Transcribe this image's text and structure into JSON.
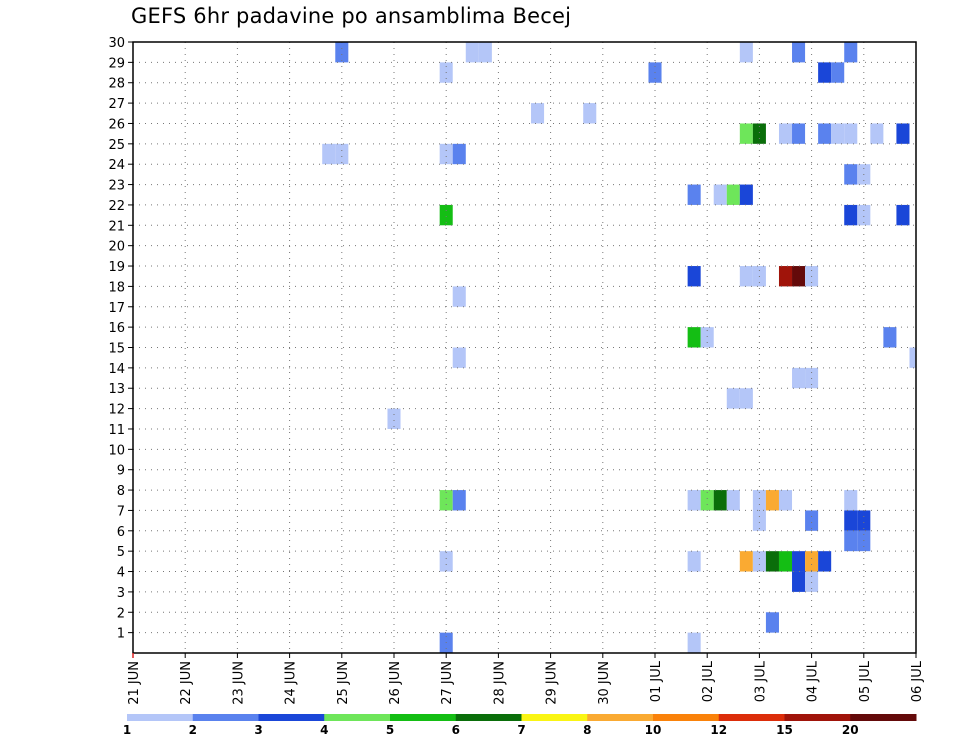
{
  "chart_data": {
    "type": "heatmap",
    "title": "GEFS 6hr padavine po ansamblima Becej",
    "xlabel": "",
    "ylabel": "",
    "x_start": "21 JUN",
    "x_ticks": [
      "21 JUN",
      "22 JUN",
      "23 JUN",
      "24 JUN",
      "25 JUN",
      "26 JUN",
      "27 JUN",
      "28 JUN",
      "29 JUN",
      "30 JUN",
      "01 JUL",
      "02 JUL",
      "03 JUL",
      "04 JUL",
      "05 JUL",
      "06 JUL"
    ],
    "y_ticks": [
      1,
      2,
      3,
      4,
      5,
      6,
      7,
      8,
      9,
      10,
      11,
      12,
      13,
      14,
      15,
      16,
      17,
      18,
      19,
      20,
      21,
      22,
      23,
      24,
      25,
      26,
      27,
      28,
      29,
      30
    ],
    "xlim": [
      0,
      15
    ],
    "ylim": [
      0,
      30
    ],
    "grid": true,
    "legend": {
      "placement": "bottom",
      "labels": [
        "1",
        "2",
        "3",
        "4",
        "5",
        "6",
        "7",
        "8",
        "10",
        "12",
        "15",
        "20"
      ],
      "colors": [
        "#b4c6f8",
        "#5a82ee",
        "#1a46d8",
        "#6ee65a",
        "#14be14",
        "#0a6e0a",
        "#faf514",
        "#faaa32",
        "#fa820a",
        "#dc2d0a",
        "#a0140a",
        "#640a0a"
      ]
    },
    "cell_width": 0.25,
    "cell_height": 1,
    "cells": [
      {
        "x": 4.0,
        "y": 29.5,
        "v": 2
      },
      {
        "x": 6.75,
        "y": 29.5,
        "v": 1
      },
      {
        "x": 11.75,
        "y": 29.5,
        "v": 1
      },
      {
        "x": 12.75,
        "y": 29.5,
        "v": 2
      },
      {
        "x": 13.75,
        "y": 29.5,
        "v": 2
      },
      {
        "x": 6.5,
        "y": 29.5,
        "v": 1
      },
      {
        "x": 6.0,
        "y": 28.5,
        "v": 1
      },
      {
        "x": 10.0,
        "y": 28.5,
        "v": 2
      },
      {
        "x": 13.25,
        "y": 28.5,
        "v": 3
      },
      {
        "x": 13.5,
        "y": 28.5,
        "v": 2
      },
      {
        "x": 7.75,
        "y": 26.5,
        "v": 1
      },
      {
        "x": 8.75,
        "y": 26.5,
        "v": 1
      },
      {
        "x": 11.75,
        "y": 25.5,
        "v": 4
      },
      {
        "x": 12.0,
        "y": 25.5,
        "v": 6
      },
      {
        "x": 12.5,
        "y": 25.5,
        "v": 1
      },
      {
        "x": 12.75,
        "y": 25.5,
        "v": 2
      },
      {
        "x": 13.25,
        "y": 25.5,
        "v": 2
      },
      {
        "x": 13.5,
        "y": 25.5,
        "v": 1
      },
      {
        "x": 13.75,
        "y": 25.5,
        "v": 1
      },
      {
        "x": 14.25,
        "y": 25.5,
        "v": 1
      },
      {
        "x": 14.75,
        "y": 25.5,
        "v": 3
      },
      {
        "x": 3.75,
        "y": 24.5,
        "v": 1
      },
      {
        "x": 4.0,
        "y": 24.5,
        "v": 1
      },
      {
        "x": 6.0,
        "y": 24.5,
        "v": 1
      },
      {
        "x": 6.25,
        "y": 24.5,
        "v": 2
      },
      {
        "x": 13.75,
        "y": 23.5,
        "v": 2
      },
      {
        "x": 14.0,
        "y": 23.5,
        "v": 1
      },
      {
        "x": 10.75,
        "y": 22.5,
        "v": 2
      },
      {
        "x": 11.25,
        "y": 22.5,
        "v": 1
      },
      {
        "x": 11.5,
        "y": 22.5,
        "v": 4
      },
      {
        "x": 11.75,
        "y": 22.5,
        "v": 3
      },
      {
        "x": 6.0,
        "y": 21.5,
        "v": 5
      },
      {
        "x": 13.75,
        "y": 21.5,
        "v": 3
      },
      {
        "x": 14.0,
        "y": 21.5,
        "v": 1
      },
      {
        "x": 14.75,
        "y": 21.5,
        "v": 3
      },
      {
        "x": 10.75,
        "y": 18.5,
        "v": 3
      },
      {
        "x": 11.75,
        "y": 18.5,
        "v": 1
      },
      {
        "x": 12.0,
        "y": 18.5,
        "v": 1
      },
      {
        "x": 12.5,
        "y": 18.5,
        "v": 15
      },
      {
        "x": 12.75,
        "y": 18.5,
        "v": 20
      },
      {
        "x": 13.0,
        "y": 18.5,
        "v": 1
      },
      {
        "x": 6.25,
        "y": 17.5,
        "v": 1
      },
      {
        "x": 10.75,
        "y": 15.5,
        "v": 5
      },
      {
        "x": 11.0,
        "y": 15.5,
        "v": 1
      },
      {
        "x": 14.5,
        "y": 15.5,
        "v": 2
      },
      {
        "x": 6.25,
        "y": 14.5,
        "v": 1
      },
      {
        "x": 15.0,
        "y": 14.5,
        "v": 1
      },
      {
        "x": 12.75,
        "y": 13.5,
        "v": 1
      },
      {
        "x": 13.0,
        "y": 13.5,
        "v": 1
      },
      {
        "x": 11.5,
        "y": 12.5,
        "v": 1
      },
      {
        "x": 11.75,
        "y": 12.5,
        "v": 1
      },
      {
        "x": 5.0,
        "y": 11.5,
        "v": 1
      },
      {
        "x": 6.0,
        "y": 7.5,
        "v": 4
      },
      {
        "x": 6.25,
        "y": 7.5,
        "v": 2
      },
      {
        "x": 10.75,
        "y": 7.5,
        "v": 1
      },
      {
        "x": 11.0,
        "y": 7.5,
        "v": 4
      },
      {
        "x": 11.25,
        "y": 7.5,
        "v": 6
      },
      {
        "x": 11.5,
        "y": 7.5,
        "v": 1
      },
      {
        "x": 12.0,
        "y": 7.5,
        "v": 1
      },
      {
        "x": 12.25,
        "y": 7.5,
        "v": 8
      },
      {
        "x": 12.5,
        "y": 7.5,
        "v": 1
      },
      {
        "x": 13.75,
        "y": 7.5,
        "v": 1
      },
      {
        "x": 12.0,
        "y": 6.5,
        "v": 1
      },
      {
        "x": 13.0,
        "y": 6.5,
        "v": 2
      },
      {
        "x": 13.75,
        "y": 6.5,
        "v": 3
      },
      {
        "x": 14.0,
        "y": 6.5,
        "v": 3
      },
      {
        "x": 13.75,
        "y": 5.5,
        "v": 2
      },
      {
        "x": 14.0,
        "y": 5.5,
        "v": 2
      },
      {
        "x": 6.0,
        "y": 4.5,
        "v": 1
      },
      {
        "x": 10.75,
        "y": 4.5,
        "v": 1
      },
      {
        "x": 11.75,
        "y": 4.5,
        "v": 8
      },
      {
        "x": 12.0,
        "y": 4.5,
        "v": 1
      },
      {
        "x": 12.25,
        "y": 4.5,
        "v": 6
      },
      {
        "x": 12.5,
        "y": 4.5,
        "v": 5
      },
      {
        "x": 12.75,
        "y": 4.5,
        "v": 3
      },
      {
        "x": 13.0,
        "y": 4.5,
        "v": 8
      },
      {
        "x": 13.25,
        "y": 4.5,
        "v": 3
      },
      {
        "x": 12.75,
        "y": 3.5,
        "v": 3
      },
      {
        "x": 13.0,
        "y": 3.5,
        "v": 1
      },
      {
        "x": 12.25,
        "y": 1.5,
        "v": 2
      },
      {
        "x": 6.0,
        "y": 0.5,
        "v": 2
      },
      {
        "x": 10.75,
        "y": 0.5,
        "v": 1
      }
    ]
  }
}
